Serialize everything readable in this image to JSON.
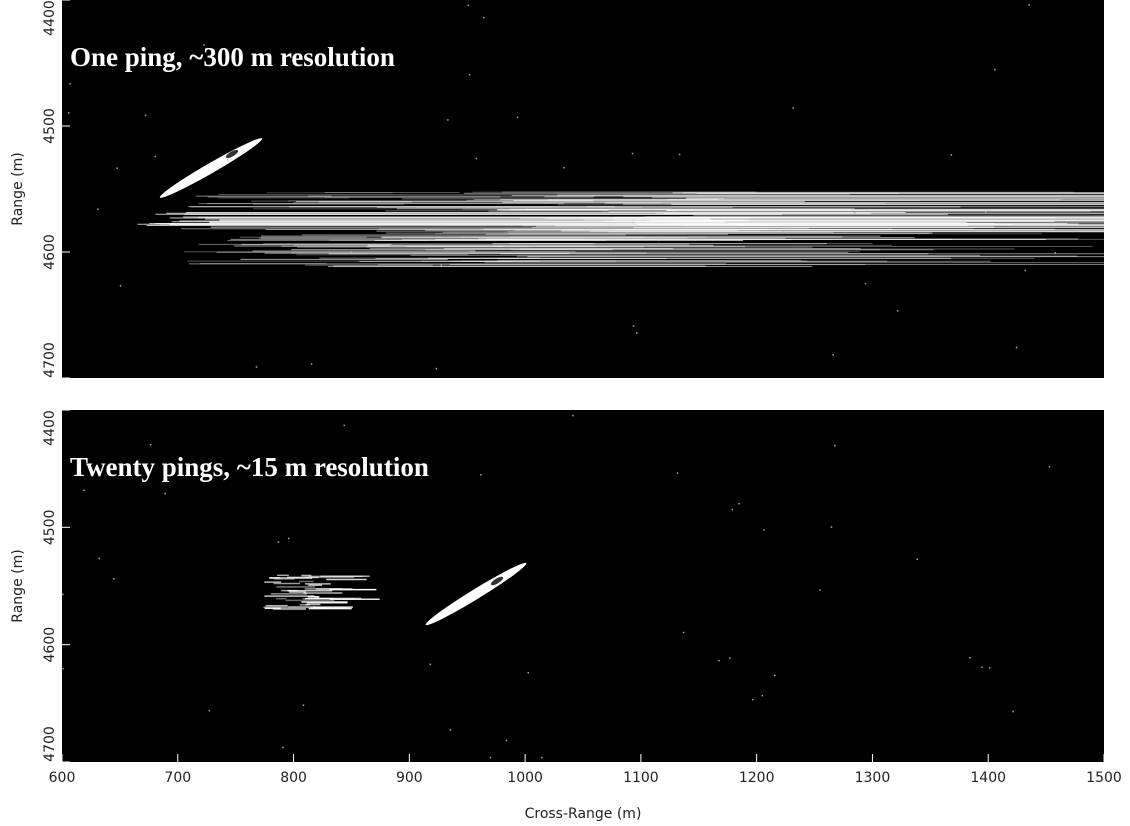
{
  "chart_data": [
    {
      "type": "image",
      "title": "One ping, ~300 m resolution",
      "ylabel": "Range (m)",
      "xlim": [
        600,
        1500
      ],
      "ylim": [
        4400,
        4700
      ],
      "yticks": [
        4400,
        4500,
        4600,
        4700
      ],
      "y_inverted": true,
      "background": "#000000"
    },
    {
      "type": "image",
      "title": "Twenty pings, ~15 m resolution",
      "ylabel": "Range (m)",
      "xlabel": "Cross-Range (m)",
      "xlim": [
        600,
        1500
      ],
      "xticks": [
        600,
        700,
        800,
        900,
        1000,
        1100,
        1200,
        1300,
        1400,
        1500
      ],
      "ylim": [
        4400,
        4700
      ],
      "yticks": [
        4400,
        4500,
        4600,
        4700
      ],
      "y_inverted": true,
      "background": "#000000"
    }
  ]
}
